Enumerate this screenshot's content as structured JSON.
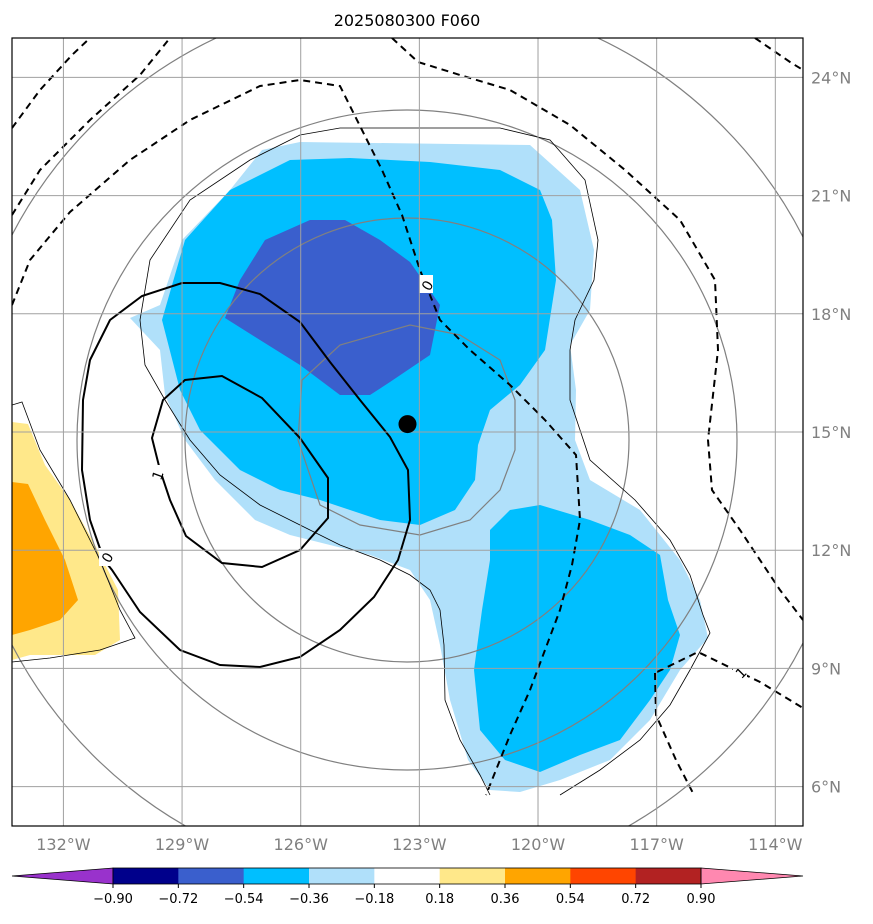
{
  "title": "2025080300 F060",
  "map": {
    "lon_range": [
      -133.3,
      -113.3
    ],
    "lat_range": [
      5.0,
      25.0
    ],
    "lat_ticks": [
      "24°N",
      "21°N",
      "18°N",
      "15°N",
      "12°N",
      "9°N",
      "6°N"
    ],
    "lat_values": [
      24,
      21,
      18,
      15,
      12,
      9,
      6
    ],
    "lon_ticks": [
      "132°W",
      "129°W",
      "126°W",
      "123°W",
      "120°W",
      "117°W",
      "114°W"
    ],
    "lon_values": [
      -132,
      -129,
      -126,
      -123,
      -120,
      -117,
      -114
    ],
    "grid": true,
    "center_marker": {
      "lon": -123.3,
      "lat": 15.2,
      "icon": "black-dot-icon"
    },
    "contour_labels": [
      {
        "text": "0",
        "style": "dashed"
      },
      {
        "text": "1",
        "style": "solid"
      },
      {
        "text": "0",
        "style": "solid"
      },
      {
        "text": "1",
        "style": "dashed"
      }
    ]
  },
  "colorbar": {
    "ticks": [
      "−0.90",
      "−0.72",
      "−0.54",
      "−0.36",
      "−0.18",
      "0.18",
      "0.36",
      "0.54",
      "0.72",
      "0.90"
    ],
    "colors": [
      "#9932cc",
      "#00008b",
      "#3a5fcd",
      "#00bfff",
      "#b0e0fa",
      "#ffffff",
      "#ffe88a",
      "#ffa500",
      "#ff4500",
      "#b22222",
      "#ff88b0",
      "#ff88b0"
    ],
    "extend": "both"
  }
}
